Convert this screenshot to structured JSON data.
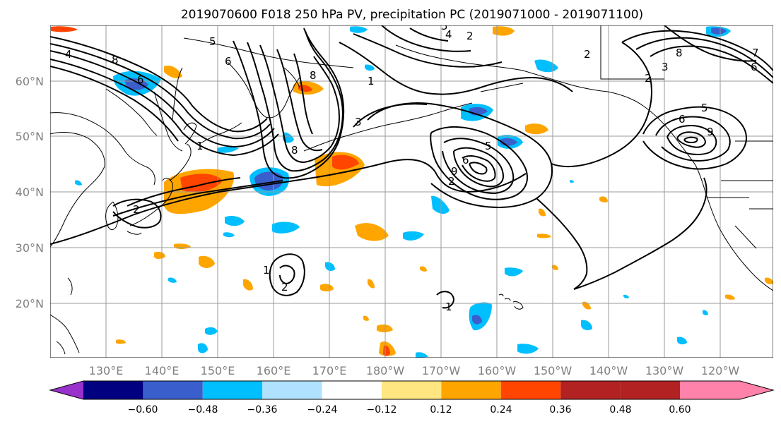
{
  "title": "2019070600 F018 250 hPa PV, precipitation PC (2019071000 - 2019071100)",
  "lat_labels": [
    "60°N",
    "50°N",
    "40°N",
    "30°N",
    "20°N"
  ],
  "lon_labels": [
    "130°E",
    "140°E",
    "150°E",
    "160°E",
    "170°E",
    "180°W",
    "170°W",
    "160°W",
    "150°W",
    "140°W",
    "130°W",
    "120°W"
  ],
  "pv_contour_labels": [
    "1",
    "2",
    "3",
    "4",
    "5",
    "6",
    "7",
    "8",
    "9"
  ],
  "colorbar": {
    "ticks": [
      "−0.60",
      "−0.48",
      "−0.36",
      "−0.24",
      "−0.12",
      "0.12",
      "0.24",
      "0.36",
      "0.48",
      "0.60"
    ],
    "colors": [
      "#9932cc",
      "#000080",
      "#3a5fcd",
      "#00bfff",
      "#b0e2ff",
      "#ffffff",
      "#ffe680",
      "#ffa500",
      "#ff4500",
      "#b22222",
      "#ff82ab"
    ]
  }
}
